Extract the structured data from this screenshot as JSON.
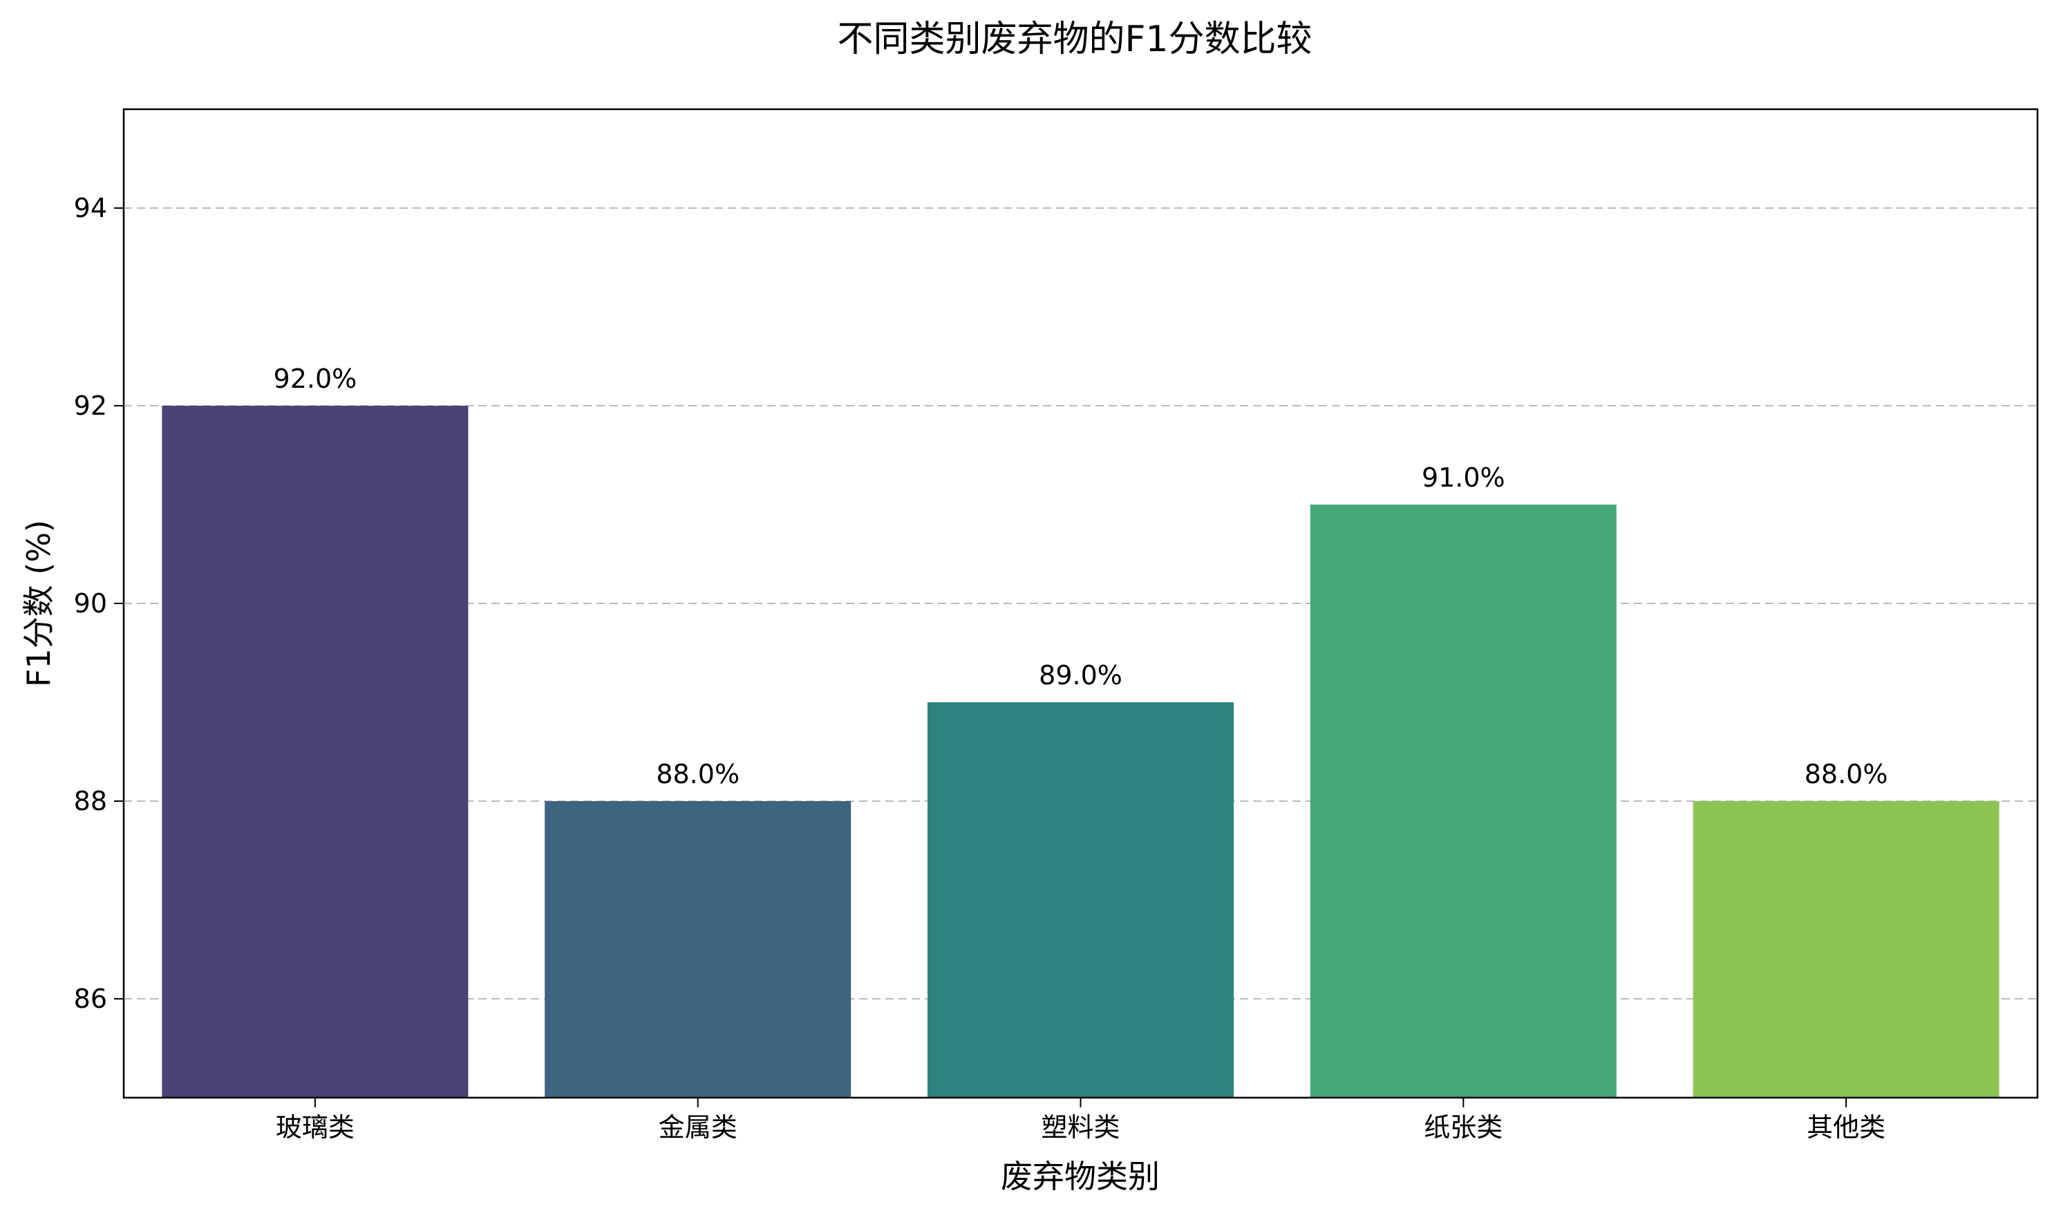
{
  "chart_data": {
    "type": "bar",
    "title": "不同类别废弃物的F1分数比较",
    "xlabel": "废弃物类别",
    "ylabel": "F1分数 (%)",
    "categories": [
      "玻璃类",
      "金属类",
      "塑料类",
      "纸张类",
      "其他类"
    ],
    "values": [
      92.0,
      88.0,
      89.0,
      91.0,
      88.0
    ],
    "data_labels": [
      "92.0%",
      "88.0%",
      "89.0%",
      "91.0%",
      "88.0%"
    ],
    "colors": [
      "#4b4276",
      "#3e6580",
      "#2d837f",
      "#46a778",
      "#8dc353"
    ],
    "ylim": [
      85,
      95
    ],
    "yticks": [
      86,
      88,
      90,
      92,
      94
    ],
    "grid": "y-dashed",
    "legend": "none"
  }
}
